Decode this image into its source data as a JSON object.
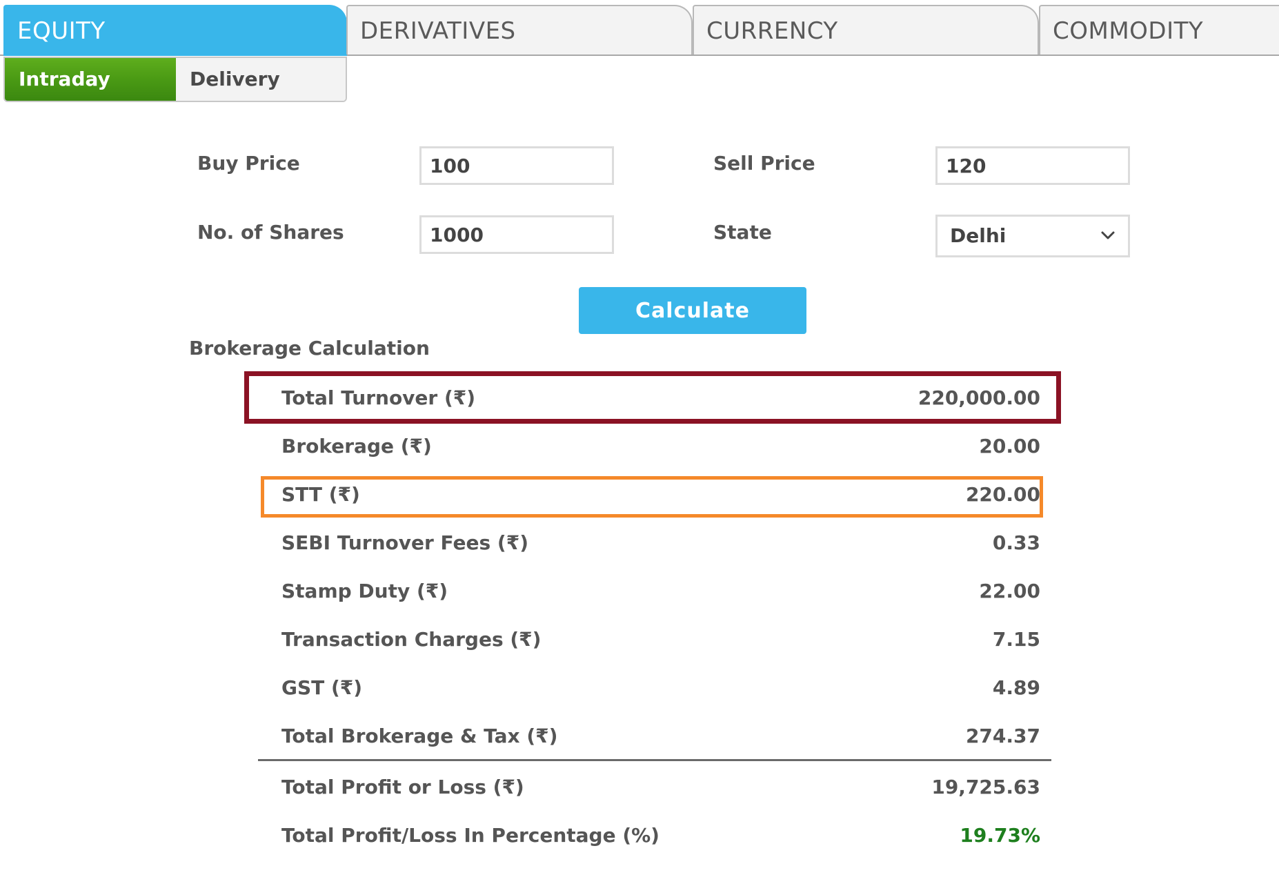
{
  "tabs": [
    {
      "label": "EQUITY",
      "active": true
    },
    {
      "label": "DERIVATIVES",
      "active": false
    },
    {
      "label": "CURRENCY",
      "active": false
    },
    {
      "label": "COMMODITY",
      "active": false
    }
  ],
  "subtabs": [
    {
      "label": "Intraday",
      "active": true
    },
    {
      "label": "Delivery",
      "active": false
    }
  ],
  "form": {
    "buy_price": {
      "label": "Buy Price",
      "value": "100"
    },
    "sell_price": {
      "label": "Sell Price",
      "value": "120"
    },
    "shares": {
      "label": "No. of Shares",
      "value": "1000"
    },
    "state": {
      "label": "State",
      "value": "Delhi",
      "icon": "chevron-down-icon"
    }
  },
  "calculate_label": "Calculate",
  "section_title": "Brokerage Calculation",
  "results": [
    {
      "label": "Total Turnover (₹)",
      "value": "220,000.00"
    },
    {
      "label": "Brokerage (₹)",
      "value": "20.00"
    },
    {
      "label": "STT (₹)",
      "value": "220.00"
    },
    {
      "label": "SEBI Turnover Fees (₹)",
      "value": "0.33"
    },
    {
      "label": "Stamp Duty (₹)",
      "value": "22.00"
    },
    {
      "label": "Transaction Charges (₹)",
      "value": "7.15"
    },
    {
      "label": "GST (₹)",
      "value": "4.89"
    },
    {
      "label": "Total Brokerage & Tax (₹)",
      "value": "274.37"
    },
    {
      "label": "Total Profit or Loss (₹)",
      "value": "19,725.63"
    },
    {
      "label": "Total Profit/Loss In Percentage (%)",
      "value": "19.73%"
    }
  ],
  "colors": {
    "accent_blue": "#39b6ea",
    "active_green": "#4a9a14",
    "turnover_highlight": "#8b1224",
    "stt_highlight": "#f5892a",
    "profit_green": "#1e7f1e"
  }
}
